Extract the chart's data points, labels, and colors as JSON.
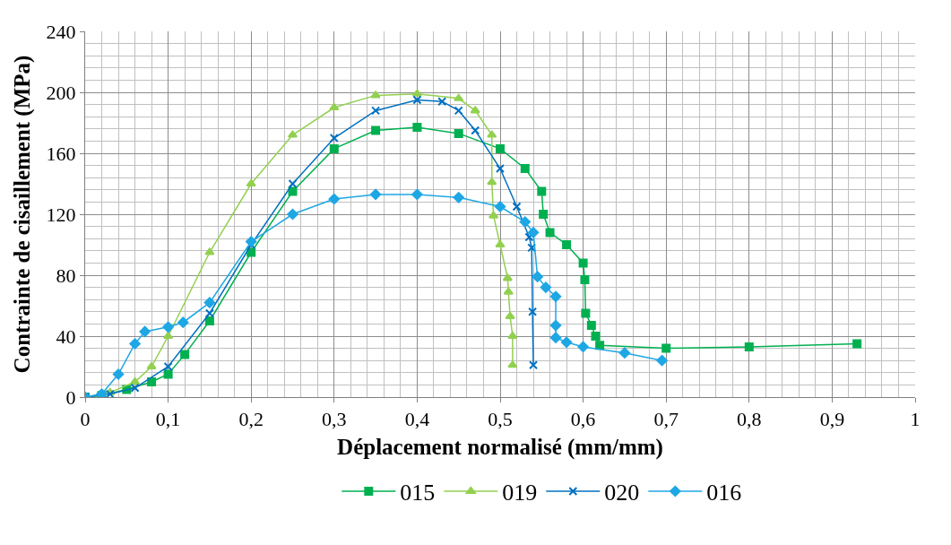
{
  "chart_data": {
    "type": "line",
    "xlabel": "Déplacement normalisé (mm/mm)",
    "ylabel": "Contrainte de cisaillement (MPa)",
    "xlim": [
      0,
      1
    ],
    "ylim": [
      0,
      240
    ],
    "xticks": [
      0,
      {
        "value": 0.1,
        "label": "0,1"
      },
      {
        "value": 0.2,
        "label": "0,2"
      },
      {
        "value": 0.3,
        "label": "0,3"
      },
      {
        "value": 0.4,
        "label": "0,4"
      },
      {
        "value": 0.5,
        "label": "0,5"
      },
      {
        "value": 0.6,
        "label": "0,6"
      },
      {
        "value": 0.7,
        "label": "0,7"
      },
      {
        "value": 0.8,
        "label": "0,8"
      },
      {
        "value": 0.9,
        "label": "0,9"
      },
      1
    ],
    "yticks": [
      0,
      40,
      80,
      120,
      160,
      200,
      240
    ],
    "grid": true,
    "legend": "bottom",
    "series": [
      {
        "name": "015",
        "color": "#00b050",
        "marker": "square",
        "x": [
          0,
          0.02,
          0.05,
          0.08,
          0.1,
          0.12,
          0.15,
          0.2,
          0.25,
          0.3,
          0.35,
          0.4,
          0.45,
          0.5,
          0.53,
          0.55,
          0.552,
          0.56,
          0.58,
          0.6,
          0.602,
          0.603,
          0.61,
          0.615,
          0.62,
          0.7,
          0.8,
          0.93
        ],
        "values": [
          0,
          1,
          5,
          10,
          15,
          28,
          50,
          95,
          135,
          163,
          175,
          177,
          173,
          163,
          150,
          135,
          120,
          108,
          100,
          88,
          77,
          55,
          47,
          40,
          34,
          32,
          33,
          35
        ]
      },
      {
        "name": "019",
        "color": "#92d050",
        "marker": "triangle",
        "x": [
          0,
          0.03,
          0.06,
          0.08,
          0.1,
          0.15,
          0.2,
          0.25,
          0.3,
          0.35,
          0.4,
          0.45,
          0.47,
          0.49,
          0.49,
          0.492,
          0.5,
          0.509,
          0.51,
          0.512,
          0.515,
          0.515
        ],
        "values": [
          0,
          3,
          10,
          20,
          40,
          95,
          140,
          172,
          190,
          198,
          199,
          196,
          188,
          172,
          141,
          119,
          100,
          78,
          69,
          53,
          40,
          21
        ]
      },
      {
        "name": "020",
        "color": "#0070c0",
        "marker": "cross",
        "x": [
          0,
          0.03,
          0.06,
          0.1,
          0.15,
          0.2,
          0.25,
          0.3,
          0.35,
          0.4,
          0.43,
          0.45,
          0.47,
          0.5,
          0.52,
          0.535,
          0.538,
          0.539,
          0.54
        ],
        "values": [
          0,
          2,
          6,
          20,
          55,
          100,
          140,
          170,
          188,
          195,
          194,
          188,
          175,
          150,
          125,
          105,
          98,
          56,
          21
        ]
      },
      {
        "name": "016",
        "color": "#1ea7e4",
        "marker": "diamond",
        "x": [
          0,
          0.02,
          0.04,
          0.06,
          0.072,
          0.1,
          0.118,
          0.15,
          0.2,
          0.25,
          0.3,
          0.35,
          0.4,
          0.45,
          0.5,
          0.53,
          0.54,
          0.545,
          0.555,
          0.567,
          0.567,
          0.567,
          0.58,
          0.6,
          0.65,
          0.695
        ],
        "values": [
          0,
          2,
          15,
          35,
          43,
          46,
          49,
          62,
          102,
          120,
          130,
          133,
          133,
          131,
          125,
          115,
          108,
          79,
          72,
          66,
          47,
          39,
          36,
          33,
          29,
          24
        ]
      }
    ]
  }
}
